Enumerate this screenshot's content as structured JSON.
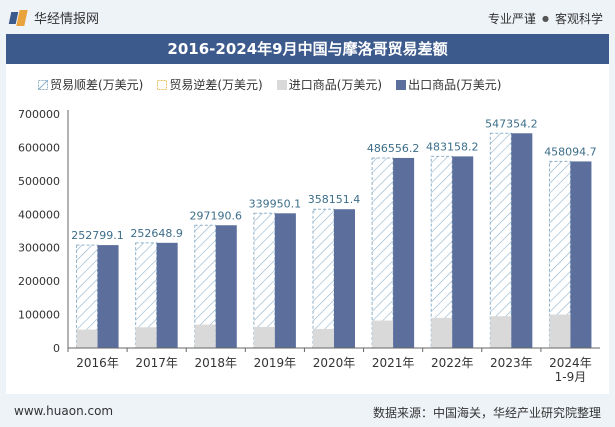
{
  "header": {
    "brand": "华经情报网",
    "tagline_a": "专业严谨",
    "tagline_b": "客观科学"
  },
  "title": "2016-2024年9月中国与摩洛哥贸易差额",
  "footer": {
    "url": "www.huaon.com",
    "source": "数据来源：中国海关，华经产业研究院整理"
  },
  "colors": {
    "export": "#5b6e9c",
    "import": "#d9d9d9",
    "surplus_stroke": "#8fb1c9",
    "label": "#3d6e8a",
    "title_bg": "#3d5a8d"
  },
  "chart_data": {
    "type": "bar",
    "categories": [
      "2016年",
      "2017年",
      "2018年",
      "2019年",
      "2020年",
      "2021年",
      "2022年",
      "2023年",
      "2024年\n1-9月"
    ],
    "series": [
      {
        "name": "贸易顺差(万美元)",
        "values": [
          252799.1,
          252648.9,
          297190.6,
          339950.1,
          358151.4,
          486556.2,
          483158.2,
          547354.2,
          458094.7
        ]
      },
      {
        "name": "贸易逆差(万美元)",
        "values": [
          0,
          0,
          0,
          0,
          0,
          0,
          0,
          0,
          0
        ]
      },
      {
        "name": "进口商品(万美元)",
        "values": [
          55000,
          62000,
          70000,
          63000,
          57000,
          82000,
          90000,
          95000,
          100000
        ]
      },
      {
        "name": "出口商品(万美元)",
        "values": [
          307799.1,
          314648.9,
          367190.6,
          402950.1,
          415151.4,
          568556.2,
          573158.2,
          642354.2,
          558094.7
        ]
      }
    ],
    "data_labels": [
      "252799.1",
      "252648.9",
      "297190.6",
      "339950.1",
      "358151.4",
      "486556.2",
      "483158.2",
      "547354.2",
      "458094.7"
    ],
    "yticks": [
      "0",
      "100000",
      "200000",
      "300000",
      "400000",
      "500000",
      "600000",
      "700000"
    ],
    "ylim": [
      0,
      700000
    ],
    "legend_position": "top-left",
    "grid": false
  }
}
